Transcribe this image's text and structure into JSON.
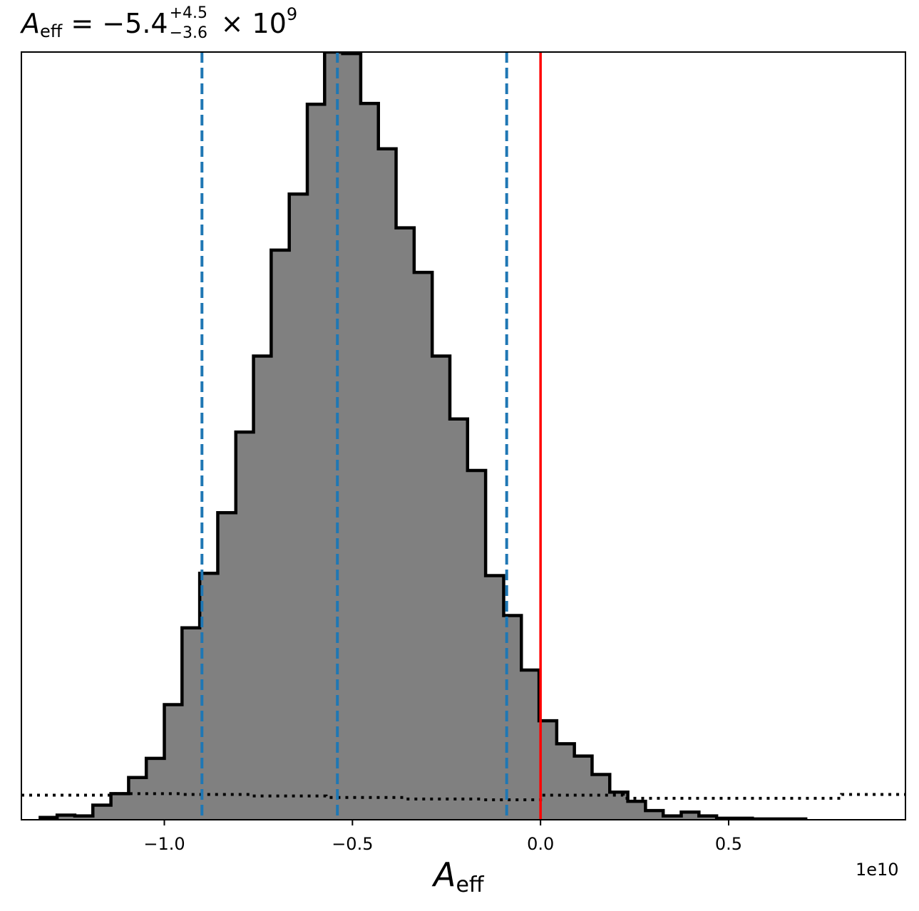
{
  "title": {
    "symbol": "A",
    "subscript": "eff",
    "equals": " = −5.4",
    "plus_err": "+4.5",
    "minus_err": "−3.6",
    "times": "× 10",
    "exponent": "9"
  },
  "xaxis": {
    "label_symbol": "A",
    "label_subscript": "eff",
    "offset_text": "1e10"
  },
  "colors": {
    "hist_fill": "#808080",
    "hist_edge": "#000000",
    "quantile_lines": "#1f77b4",
    "zero_line": "#ff0000",
    "prior_line": "#000000"
  },
  "chart_data": {
    "type": "bar",
    "histogram": true,
    "x_scale": 10000000000.0,
    "xlim": [
      -1.38,
      0.97
    ],
    "ylim": [
      0,
      1.0
    ],
    "y_axis_visible": false,
    "xticks": [
      -1.0,
      -0.5,
      0.0,
      0.5
    ],
    "xtick_labels": [
      "−1.0",
      "−0.5",
      "0.0",
      "0.5"
    ],
    "bin_edges": [
      -1.33,
      -1.285,
      -1.238,
      -1.19,
      -1.142,
      -1.095,
      -1.048,
      -1.0,
      -0.953,
      -0.906,
      -0.858,
      -0.81,
      -0.763,
      -0.716,
      -0.668,
      -0.62,
      -0.574,
      -0.526,
      -0.478,
      -0.431,
      -0.384,
      -0.336,
      -0.288,
      -0.241,
      -0.194,
      -0.146,
      -0.098,
      -0.051,
      -0.004,
      0.043,
      0.09,
      0.137,
      0.184,
      0.232,
      0.279,
      0.326,
      0.374,
      0.421,
      0.468,
      0.516,
      0.563,
      0.61,
      0.658,
      0.705
    ],
    "counts": [
      0.003,
      0.006,
      0.005,
      0.019,
      0.034,
      0.055,
      0.08,
      0.15,
      0.25,
      0.321,
      0.4,
      0.505,
      0.604,
      0.742,
      0.815,
      0.932,
      1.0,
      0.998,
      0.933,
      0.874,
      0.771,
      0.713,
      0.604,
      0.522,
      0.455,
      0.318,
      0.266,
      0.195,
      0.129,
      0.099,
      0.083,
      0.059,
      0.036,
      0.024,
      0.012,
      0.005,
      0.01,
      0.005,
      0.002,
      0.002,
      0.001,
      0.001,
      0.001
    ],
    "quantile_lines": [
      -0.9,
      -0.54,
      -0.09
    ],
    "zero_line": 0.0,
    "prior": {
      "style": "dotted",
      "x": [
        -1.38,
        -1.14,
        -1.14,
        -0.95,
        -0.95,
        -0.77,
        -0.77,
        -0.57,
        -0.57,
        -0.36,
        -0.36,
        -0.16,
        -0.16,
        0.0,
        0.0,
        0.22,
        0.22,
        0.4,
        0.4,
        0.6,
        0.6,
        0.8,
        0.8,
        0.97
      ],
      "y": [
        0.032,
        0.032,
        0.034,
        0.034,
        0.033,
        0.033,
        0.031,
        0.031,
        0.029,
        0.029,
        0.027,
        0.027,
        0.026,
        0.026,
        0.032,
        0.032,
        0.028,
        0.028,
        0.028,
        0.028,
        0.028,
        0.028,
        0.033,
        0.033
      ]
    }
  }
}
